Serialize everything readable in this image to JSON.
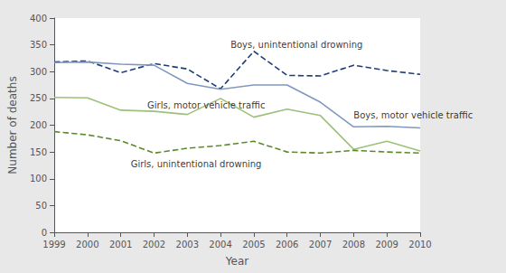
{
  "chart_data": {
    "type": "line",
    "xlabel": "Year",
    "ylabel": "Number of deaths",
    "x": [
      1999,
      2000,
      2001,
      2002,
      2003,
      2004,
      2005,
      2006,
      2007,
      2008,
      2009,
      2010
    ],
    "series": [
      {
        "color": "#1f3d7a",
        "line_style": "dashed",
        "values": [
          318,
          320,
          298,
          315,
          305,
          268,
          338,
          293,
          292,
          312,
          302,
          295
        ]
      },
      {
        "color": "#8098c0",
        "line_style": "solid",
        "values": [
          317,
          318,
          314,
          312,
          278,
          267,
          275,
          275,
          243,
          197,
          198,
          195
        ]
      },
      {
        "color": "#9dc07a",
        "line_style": "solid",
        "values": [
          252,
          251,
          228,
          226,
          220,
          250,
          215,
          230,
          218,
          155,
          170,
          152
        ]
      },
      {
        "color": "#5a8a2a",
        "line_style": "dashed",
        "values": [
          188,
          182,
          171,
          148,
          157,
          162,
          170,
          150,
          148,
          153,
          150,
          148
        ]
      }
    ],
    "xlim": [
      1999,
      2010
    ],
    "xticks": [
      1999,
      2000,
      2001,
      2002,
      2003,
      2004,
      2005,
      2006,
      2007,
      2008,
      2009,
      2010
    ],
    "ylim": [
      0,
      400
    ],
    "yticks": [
      0,
      50,
      100,
      150,
      200,
      250,
      300,
      350,
      400
    ],
    "grid": false,
    "annotations": [
      {
        "text": "Boys, unintentional drowning",
        "x": 2004.3,
        "y": 350
      },
      {
        "text": "Boys, motor vehicle traffic",
        "x": 2008.0,
        "y": 218
      },
      {
        "text": "Girls, motor vehicle traffic",
        "x": 2001.8,
        "y": 237
      },
      {
        "text": "Girls, unintentional drowning",
        "x": 2001.3,
        "y": 128
      }
    ]
  }
}
